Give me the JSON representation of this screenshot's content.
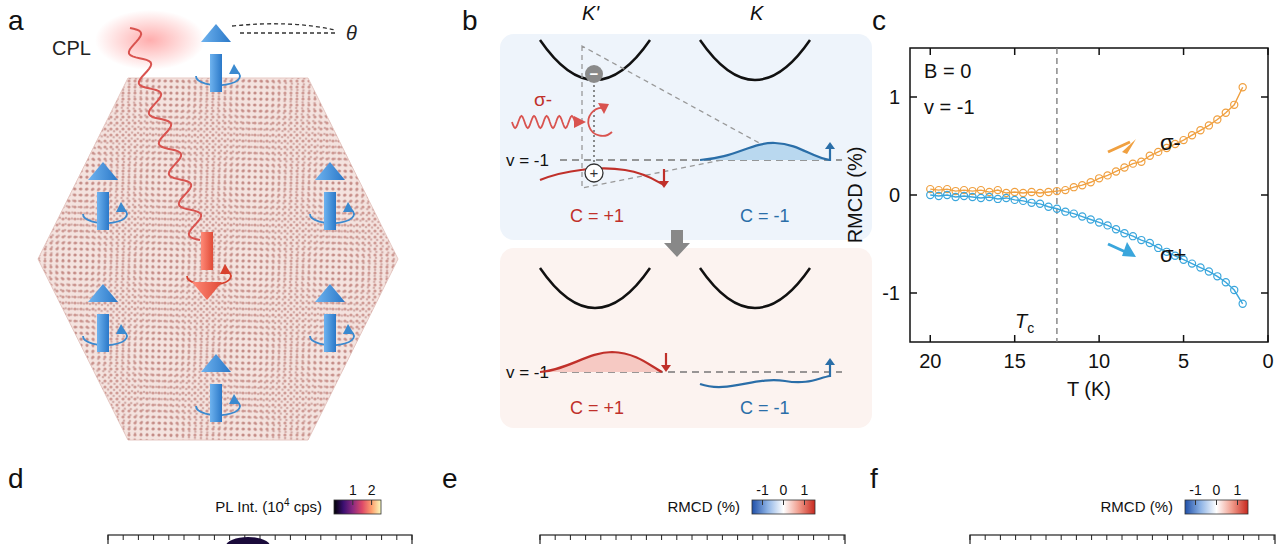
{
  "panel_labels": [
    "a",
    "b",
    "c",
    "d",
    "e",
    "f"
  ],
  "diagram_a": {
    "cpl": "CPL",
    "theta": "θ"
  },
  "diagram_b": {
    "valleys": [
      "K'",
      "K"
    ],
    "light": "σ-",
    "filling": "v = -1",
    "chern_k_prime": "C = +1",
    "chern_k": "C = -1",
    "electron": "−",
    "hole": "+"
  },
  "chart_data": {
    "type": "line",
    "xlabel": "T (K)",
    "ylabel": "RMCD (%)",
    "annotations": [
      "B = 0",
      "v = -1"
    ],
    "tc_label": {
      "text": "T",
      "sub": "c"
    },
    "tc": 12.5,
    "xlim": [
      21.2,
      0
    ],
    "xticks": [
      20,
      15,
      10,
      5,
      0
    ],
    "ylim": [
      -1.5,
      1.5
    ],
    "yticks": [
      -1,
      0,
      1
    ],
    "x": [
      20,
      19.5,
      19,
      18.5,
      18,
      17.5,
      17,
      16.5,
      16,
      15.5,
      15,
      14.5,
      14,
      13.5,
      13,
      12.5,
      12,
      11.5,
      11,
      10.5,
      10,
      9.5,
      9,
      8.5,
      8,
      7.5,
      7,
      6.5,
      6,
      5.5,
      5,
      4.5,
      4,
      3.5,
      3,
      2.5,
      2,
      1.5
    ],
    "series": [
      {
        "name": "σ-",
        "color": "#f0a040",
        "marker": "circle",
        "line_style": "solid",
        "values": [
          0.06,
          0.05,
          0.06,
          0.04,
          0.05,
          0.04,
          0.05,
          0.03,
          0.05,
          0.02,
          0.03,
          0.02,
          0.03,
          0.02,
          0.03,
          0.04,
          0.05,
          0.08,
          0.1,
          0.13,
          0.17,
          0.2,
          0.24,
          0.28,
          0.32,
          0.34,
          0.4,
          0.44,
          0.48,
          0.52,
          0.56,
          0.61,
          0.66,
          0.71,
          0.77,
          0.84,
          0.92,
          1.1
        ]
      },
      {
        "name": "σ+",
        "color": "#3aa6dc",
        "marker": "circle",
        "line_style": "solid",
        "values": [
          0.0,
          -0.01,
          0.0,
          -0.02,
          -0.01,
          -0.02,
          -0.03,
          -0.02,
          -0.04,
          -0.03,
          -0.05,
          -0.06,
          -0.08,
          -0.09,
          -0.12,
          -0.14,
          -0.17,
          -0.19,
          -0.22,
          -0.25,
          -0.28,
          -0.31,
          -0.35,
          -0.39,
          -0.42,
          -0.46,
          -0.49,
          -0.54,
          -0.58,
          -0.62,
          -0.66,
          -0.7,
          -0.74,
          -0.78,
          -0.83,
          -0.89,
          -0.97,
          -1.11
        ]
      }
    ]
  },
  "maps": [
    {
      "colorbar_title": [
        "PL Int. (10",
        "4",
        " cps)"
      ],
      "colorbar_range": [
        0,
        2.5
      ],
      "colorbar_ticks": [
        1,
        2
      ]
    },
    {
      "colorbar_title": [
        "RMCD (%)"
      ],
      "colorbar_range": [
        -1.5,
        1.5
      ],
      "colorbar_ticks": [
        -1,
        0,
        1
      ]
    },
    {
      "colorbar_title": [
        "RMCD (%)"
      ],
      "colorbar_range": [
        -1.5,
        1.5
      ],
      "colorbar_ticks": [
        -1,
        0,
        1
      ]
    }
  ]
}
